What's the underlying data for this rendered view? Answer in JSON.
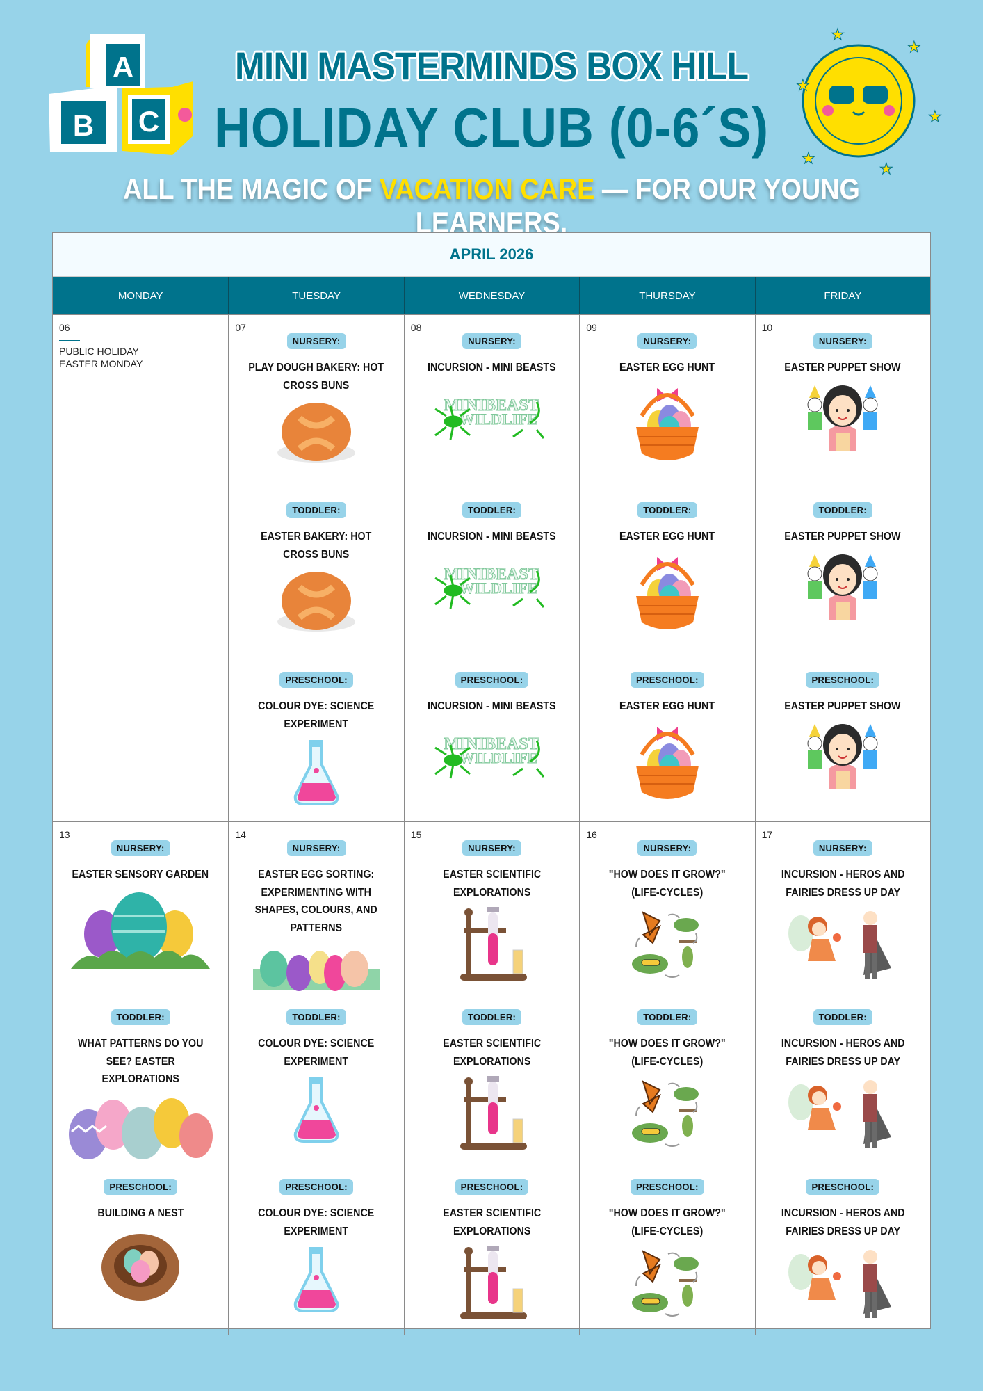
{
  "header": {
    "title_line1": "MINI MASTERMINDS BOX HILL",
    "title_line2": "HOLIDAY CLUB (0-6´S)",
    "tagline_pre": "ALL THE MAGIC OF ",
    "tagline_highlight": "VACATION CARE",
    "tagline_post": " — FOR OUR YOUNG LEARNERS.",
    "logo_letters": [
      "A",
      "B",
      "C"
    ]
  },
  "colors": {
    "background": "#97d3e9",
    "accent": "#00738c",
    "highlight": "#ffdf00"
  },
  "calendar": {
    "month": "APRIL 2026",
    "weekdays": [
      "MONDAY",
      "TUESDAY",
      "WEDNESDAY",
      "THURSDAY",
      "FRIDAY"
    ],
    "weeks": [
      {
        "days": [
          {
            "date": "06",
            "holiday": [
              "PUBLIC HOLIDAY",
              "EASTER MONDAY"
            ]
          },
          {
            "date": "07",
            "activities": [
              {
                "group": "NURSERY:",
                "title": "PLAY DOUGH BAKERY: HOT CROSS BUNS",
                "image": "bun"
              },
              {
                "group": "TODDLER:",
                "title": "EASTER BAKERY: HOT CROSS BUNS",
                "image": "bun"
              },
              {
                "group": "PRESCHOOL:",
                "title": "COLOUR DYE: SCIENCE EXPERIMENT",
                "image": "flask"
              }
            ]
          },
          {
            "date": "08",
            "activities": [
              {
                "group": "NURSERY:",
                "title": "INCURSION - MINI BEASTS",
                "image": "minibeast"
              },
              {
                "group": "TODDLER:",
                "title": "INCURSION - MINI BEASTS",
                "image": "minibeast"
              },
              {
                "group": "PRESCHOOL:",
                "title": "INCURSION - MINI BEASTS",
                "image": "minibeast"
              }
            ]
          },
          {
            "date": "09",
            "activities": [
              {
                "group": "NURSERY:",
                "title": "EASTER EGG HUNT",
                "image": "basket"
              },
              {
                "group": "TODDLER:",
                "title": "EASTER EGG HUNT",
                "image": "basket"
              },
              {
                "group": "PRESCHOOL:",
                "title": "EASTER EGG HUNT",
                "image": "basket"
              }
            ]
          },
          {
            "date": "10",
            "activities": [
              {
                "group": "NURSERY:",
                "title": "EASTER PUPPET SHOW",
                "image": "puppet"
              },
              {
                "group": "TODDLER:",
                "title": "EASTER PUPPET SHOW",
                "image": "puppet"
              },
              {
                "group": "PRESCHOOL:",
                "title": "EASTER PUPPET SHOW",
                "image": "puppet"
              }
            ]
          }
        ]
      },
      {
        "days": [
          {
            "date": "13",
            "activities": [
              {
                "group": "NURSERY:",
                "title": "EASTER SENSORY GARDEN",
                "image": "eggs-grass"
              },
              {
                "group": "TODDLER:",
                "title": "WHAT PATTERNS DO YOU SEE? EASTER EXPLORATIONS",
                "image": "eggs-row"
              },
              {
                "group": "PRESCHOOL:",
                "title": "BUILDING A NEST",
                "image": "nest"
              }
            ]
          },
          {
            "date": "14",
            "activities": [
              {
                "group": "NURSERY:",
                "title": "EASTER EGG SORTING: EXPERIMENTING WITH SHAPES, COLOURS, AND PATTERNS",
                "image": "eggs-small"
              },
              {
                "group": "TODDLER:",
                "title": "COLOUR DYE: SCIENCE EXPERIMENT",
                "image": "flask"
              },
              {
                "group": "PRESCHOOL:",
                "title": "COLOUR DYE: SCIENCE EXPERIMENT",
                "image": "flask"
              }
            ]
          },
          {
            "date": "15",
            "activities": [
              {
                "group": "NURSERY:",
                "title": "EASTER SCIENTIFIC EXPLORATIONS",
                "image": "test-tube"
              },
              {
                "group": "TODDLER:",
                "title": "EASTER SCIENTIFIC EXPLORATIONS",
                "image": "test-tube"
              },
              {
                "group": "PRESCHOOL:",
                "title": "EASTER SCIENTIFIC EXPLORATIONS",
                "image": "test-tube"
              }
            ]
          },
          {
            "date": "16",
            "activities": [
              {
                "group": "NURSERY:",
                "title": "\"HOW DOES IT GROW?\" (LIFE-CYCLES)",
                "image": "lifecycle"
              },
              {
                "group": "TODDLER:",
                "title": "\"HOW DOES IT GROW?\" (LIFE-CYCLES)",
                "image": "lifecycle"
              },
              {
                "group": "PRESCHOOL:",
                "title": "\"HOW DOES IT GROW?\" (LIFE-CYCLES)",
                "image": "lifecycle"
              }
            ]
          },
          {
            "date": "17",
            "activities": [
              {
                "group": "NURSERY:",
                "title": "INCURSION - HEROS AND FAIRIES DRESS UP DAY",
                "image": "hero-fairy"
              },
              {
                "group": "TODDLER:",
                "title": "INCURSION - HEROS AND FAIRIES DRESS UP DAY",
                "image": "hero-fairy"
              },
              {
                "group": "PRESCHOOL:",
                "title": "INCURSION - HEROS AND FAIRIES DRESS UP DAY",
                "image": "hero-fairy"
              }
            ]
          }
        ]
      }
    ]
  }
}
